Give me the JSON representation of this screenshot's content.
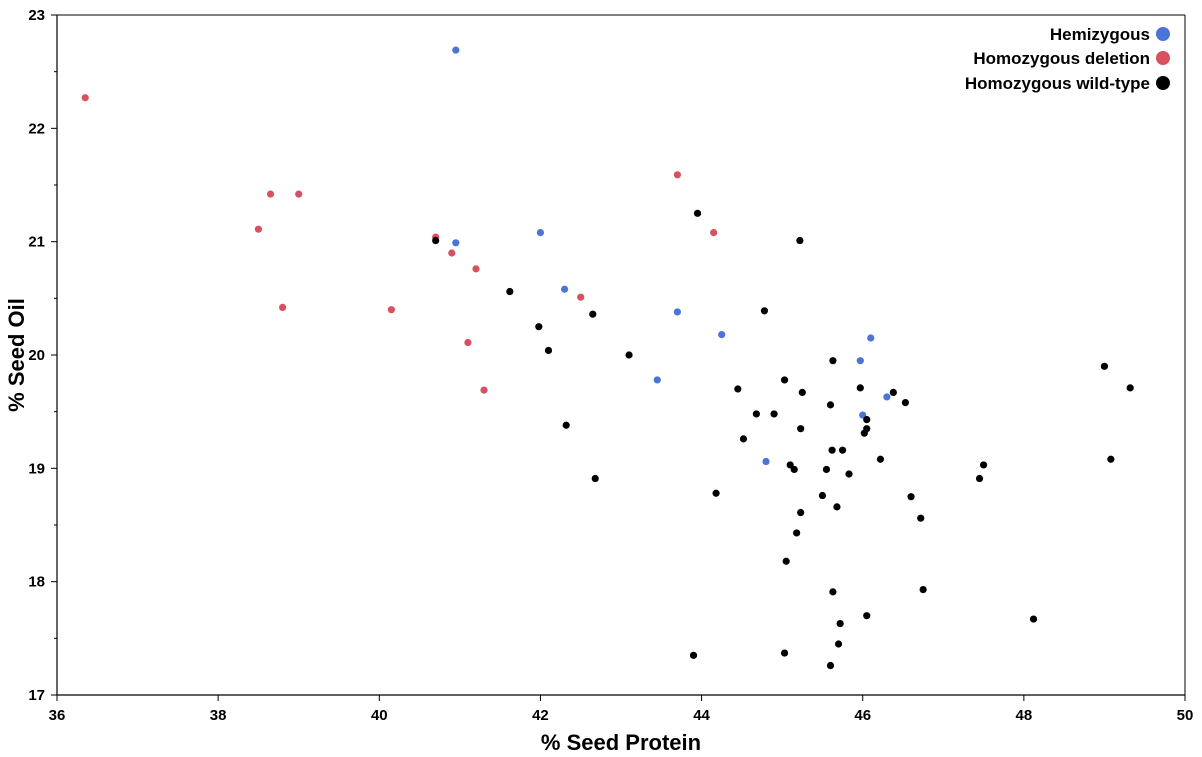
{
  "chart_data": {
    "type": "scatter",
    "xlabel": "% Seed Protein",
    "ylabel": "% Seed Oil",
    "xlim": [
      36,
      50
    ],
    "ylim": [
      17,
      23
    ],
    "xticks": [
      36,
      38,
      40,
      42,
      44,
      46,
      48,
      50
    ],
    "yticks": [
      17,
      18,
      19,
      20,
      21,
      22,
      23
    ],
    "grid": false,
    "legend_position": "top-right",
    "series": [
      {
        "name": "Hemizygous",
        "color": "#4a74d6",
        "points": [
          [
            40.95,
            22.69
          ],
          [
            40.95,
            20.99
          ],
          [
            42.0,
            21.08
          ],
          [
            42.3,
            20.58
          ],
          [
            43.7,
            20.38
          ],
          [
            44.25,
            20.18
          ],
          [
            43.45,
            19.78
          ],
          [
            44.8,
            19.06
          ],
          [
            46.1,
            20.15
          ],
          [
            45.97,
            19.95
          ],
          [
            46.3,
            19.63
          ],
          [
            46.0,
            19.47
          ]
        ]
      },
      {
        "name": "Homozygous deletion",
        "color": "#d9505e",
        "points": [
          [
            36.35,
            22.27
          ],
          [
            38.65,
            21.42
          ],
          [
            39.0,
            21.42
          ],
          [
            38.5,
            21.11
          ],
          [
            38.8,
            20.42
          ],
          [
            40.15,
            20.4
          ],
          [
            40.7,
            21.04
          ],
          [
            40.9,
            20.9
          ],
          [
            41.2,
            20.76
          ],
          [
            41.1,
            20.11
          ],
          [
            41.3,
            19.69
          ],
          [
            42.5,
            20.51
          ],
          [
            43.7,
            21.59
          ],
          [
            44.15,
            21.08
          ]
        ]
      },
      {
        "name": "Homozygous wild-type",
        "color": "#000000",
        "points": [
          [
            40.7,
            21.01
          ],
          [
            41.62,
            20.56
          ],
          [
            41.98,
            20.25
          ],
          [
            42.1,
            20.04
          ],
          [
            42.65,
            20.36
          ],
          [
            42.32,
            19.38
          ],
          [
            42.68,
            18.91
          ],
          [
            43.1,
            20.0
          ],
          [
            43.95,
            21.25
          ],
          [
            45.22,
            21.01
          ],
          [
            44.78,
            20.39
          ],
          [
            44.45,
            19.7
          ],
          [
            44.18,
            18.78
          ],
          [
            44.52,
            19.26
          ],
          [
            44.68,
            19.48
          ],
          [
            44.9,
            19.48
          ],
          [
            45.03,
            19.78
          ],
          [
            45.25,
            19.67
          ],
          [
            45.1,
            19.03
          ],
          [
            45.15,
            18.99
          ],
          [
            45.23,
            19.35
          ],
          [
            45.6,
            19.56
          ],
          [
            45.63,
            19.95
          ],
          [
            45.97,
            19.71
          ],
          [
            46.05,
            19.43
          ],
          [
            46.05,
            19.35
          ],
          [
            46.02,
            19.31
          ],
          [
            46.38,
            19.67
          ],
          [
            46.53,
            19.58
          ],
          [
            45.55,
            18.99
          ],
          [
            45.62,
            19.16
          ],
          [
            45.75,
            19.16
          ],
          [
            45.83,
            18.95
          ],
          [
            46.22,
            19.08
          ],
          [
            45.5,
            18.76
          ],
          [
            45.23,
            18.61
          ],
          [
            45.68,
            18.66
          ],
          [
            45.18,
            18.43
          ],
          [
            46.6,
            18.75
          ],
          [
            46.72,
            18.56
          ],
          [
            45.05,
            18.18
          ],
          [
            45.63,
            17.91
          ],
          [
            45.72,
            17.63
          ],
          [
            46.05,
            17.7
          ],
          [
            46.75,
            17.93
          ],
          [
            45.7,
            17.45
          ],
          [
            45.03,
            17.37
          ],
          [
            45.6,
            17.26
          ],
          [
            43.9,
            17.35
          ],
          [
            47.45,
            18.91
          ],
          [
            47.5,
            19.03
          ],
          [
            48.12,
            17.67
          ],
          [
            49.0,
            19.9
          ],
          [
            49.08,
            19.08
          ],
          [
            49.32,
            19.71
          ]
        ]
      }
    ]
  }
}
